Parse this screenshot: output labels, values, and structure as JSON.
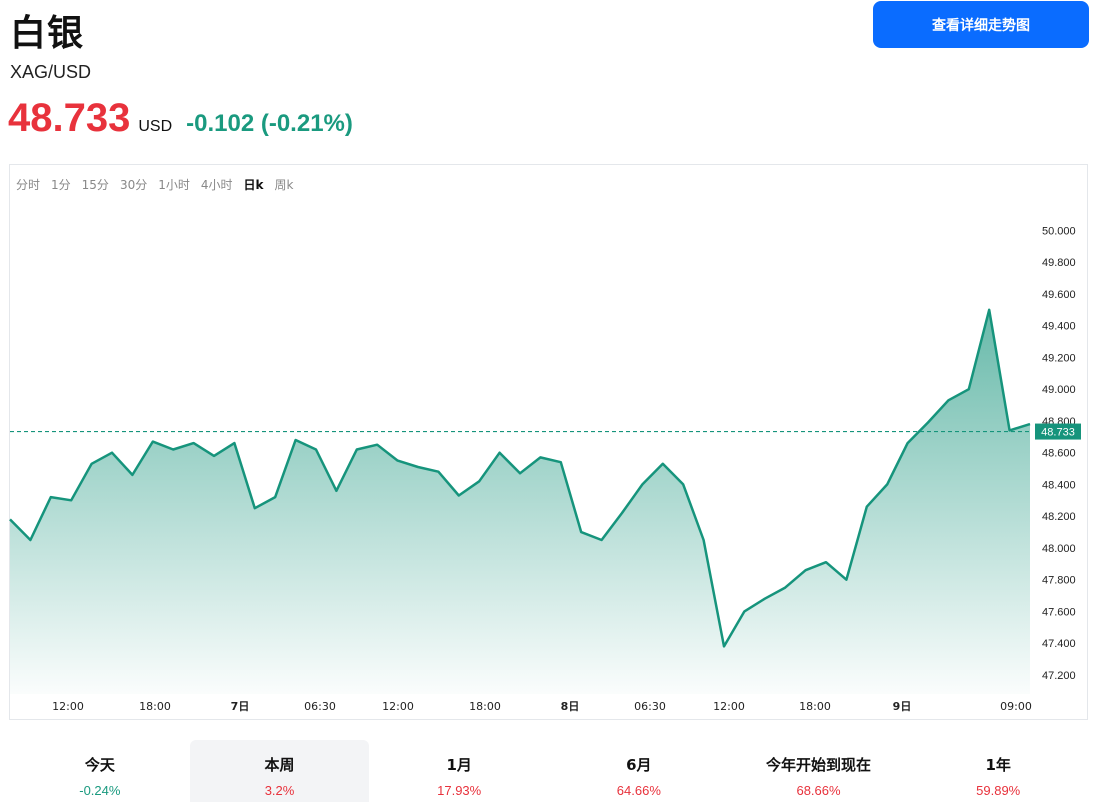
{
  "header": {
    "title": "白银",
    "symbol": "XAG/USD",
    "price": "48.733",
    "currency": "USD",
    "change": "-0.102 (-0.21%)",
    "detail_button": "查看详细走势图"
  },
  "timeframes": [
    {
      "label": "分时",
      "active": false
    },
    {
      "label": "1分",
      "active": false
    },
    {
      "label": "15分",
      "active": false
    },
    {
      "label": "30分",
      "active": false
    },
    {
      "label": "1小时",
      "active": false
    },
    {
      "label": "4小时",
      "active": false
    },
    {
      "label": "日k",
      "active": true
    },
    {
      "label": "周k",
      "active": false
    }
  ],
  "chart_data": {
    "type": "area",
    "ylim": [
      47.08,
      50.16
    ],
    "y_ticks": [
      "50.000",
      "49.800",
      "49.600",
      "49.400",
      "49.200",
      "49.000",
      "48.800",
      "48.600",
      "48.400",
      "48.200",
      "48.000",
      "47.800",
      "47.600",
      "47.400",
      "47.200"
    ],
    "x_tick_labels": [
      "12:00",
      "18:00",
      "7日",
      "06:30",
      "12:00",
      "18:00",
      "8日",
      "06:30",
      "12:00",
      "18:00",
      "9日",
      "09:00"
    ],
    "last_price": 48.733,
    "last_price_label": "48.733",
    "x": [
      0,
      2,
      4,
      6,
      8,
      10,
      12,
      14,
      16,
      18,
      20,
      22,
      24,
      26,
      28,
      30,
      32,
      34,
      36,
      38,
      40,
      42,
      44,
      46,
      48,
      50,
      52,
      54,
      56,
      58,
      60,
      62,
      64,
      66,
      68,
      70,
      72,
      74,
      76,
      78,
      80,
      82,
      84,
      86,
      88,
      90,
      92,
      94,
      96,
      98,
      100
    ],
    "values": [
      48.18,
      48.05,
      48.32,
      48.3,
      48.53,
      48.6,
      48.46,
      48.67,
      48.62,
      48.66,
      48.58,
      48.66,
      48.25,
      48.32,
      48.68,
      48.62,
      48.36,
      48.62,
      48.65,
      48.55,
      48.51,
      48.48,
      48.33,
      48.42,
      48.6,
      48.47,
      48.57,
      48.54,
      48.1,
      48.05,
      48.22,
      48.4,
      48.53,
      48.4,
      48.05,
      47.38,
      47.6,
      47.68,
      47.75,
      47.86,
      47.91,
      47.8,
      48.26,
      48.4,
      48.66,
      48.79,
      48.93,
      49.0,
      49.5,
      48.74,
      48.78
    ],
    "line_color": "#16947c",
    "fill_color": "#16947c"
  },
  "performance": [
    {
      "label": "今天",
      "value": "-0.24%",
      "color": "#1a9a7f",
      "active": false
    },
    {
      "label": "本周",
      "value": "3.2%",
      "color": "#e8323c",
      "active": true
    },
    {
      "label": "1月",
      "value": "17.93%",
      "color": "#e8323c",
      "active": false
    },
    {
      "label": "6月",
      "value": "64.66%",
      "color": "#e8323c",
      "active": false
    },
    {
      "label": "今年开始到现在",
      "value": "68.66%",
      "color": "#e8323c",
      "active": false
    },
    {
      "label": "1年",
      "value": "59.89%",
      "color": "#e8323c",
      "active": false
    }
  ]
}
